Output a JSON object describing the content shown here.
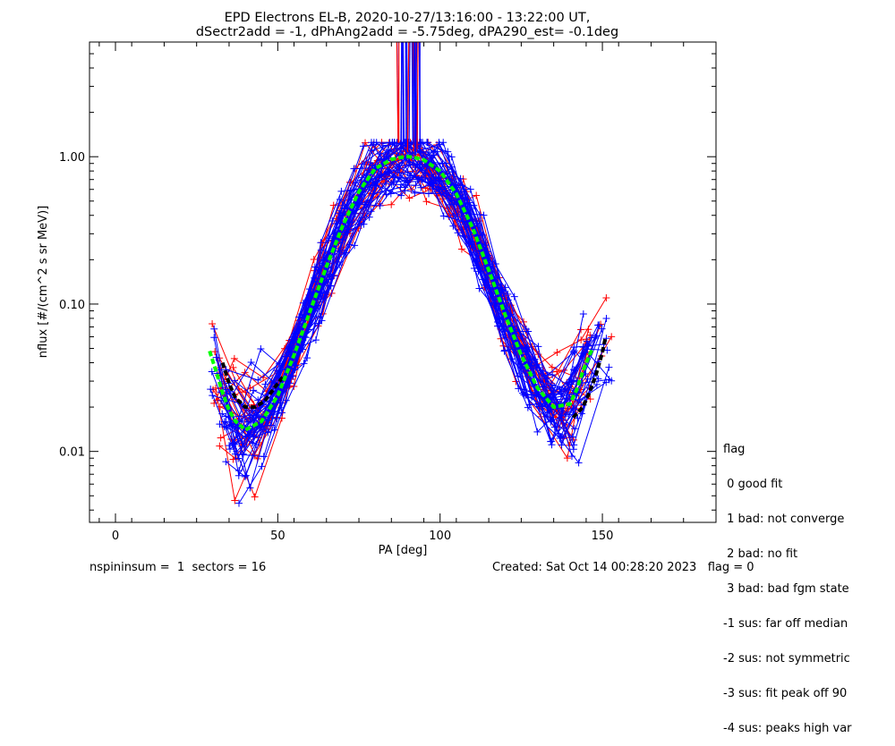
{
  "chart_data": {
    "type": "line",
    "title": "EPD Electrons EL-B, 2020-10-27/13:16:00 - 13:22:00 UT,",
    "subtitle": "dSectr2add = -1, dPhAng2add = -5.75deg, dPA290_est=  -0.1deg",
    "xlabel": "PA [deg]",
    "ylabel": "nflux [#/(cm^2 s sr MeV)]",
    "xlim": [
      -8,
      185
    ],
    "ylim": [
      0.0033,
      6.0
    ],
    "yscale": "log",
    "x_ticks": [
      0,
      50,
      100,
      150
    ],
    "y_ticks": [
      {
        "value": 0.01,
        "label": "0.01"
      },
      {
        "value": 0.1,
        "label": "0.10"
      },
      {
        "value": 1.0,
        "label": "1.00"
      }
    ],
    "grid": false,
    "series_styles": {
      "blue": "#0000ff",
      "red": "#ff0000",
      "green_fit": "#00ff00",
      "black_fit": "#000000"
    },
    "green_fit": {
      "x": [
        29,
        31,
        33,
        35,
        37,
        40,
        45,
        50,
        55,
        60,
        65,
        70,
        75,
        80,
        85,
        88,
        90,
        92,
        95,
        100,
        105,
        110,
        115,
        120,
        125,
        130,
        135,
        140,
        142,
        144,
        146,
        147
      ],
      "y": [
        0.048,
        0.035,
        0.025,
        0.019,
        0.016,
        0.014,
        0.016,
        0.024,
        0.045,
        0.09,
        0.18,
        0.34,
        0.58,
        0.83,
        0.96,
        0.99,
        1.0,
        0.99,
        0.95,
        0.8,
        0.56,
        0.33,
        0.17,
        0.085,
        0.045,
        0.027,
        0.02,
        0.021,
        0.026,
        0.035,
        0.045,
        0.05
      ]
    },
    "black_fit": {
      "x": [
        33,
        35,
        37,
        40,
        43,
        46,
        49,
        52,
        141,
        144,
        146,
        148,
        150,
        151
      ],
      "y": [
        0.04,
        0.029,
        0.023,
        0.02,
        0.02,
        0.022,
        0.027,
        0.033,
        0.017,
        0.02,
        0.025,
        0.033,
        0.047,
        0.06
      ]
    },
    "blue_curve_count": 38,
    "red_curve_count": 22
  },
  "flag_legend": [
    "flag",
    " 0 good fit",
    " 1 bad: not converge",
    " 2 bad: no fit",
    " 3 bad: bad fgm state",
    "-1 sus: far off median",
    "-2 sus: not symmetric",
    "-3 sus: fit peak off 90",
    "-4 sus: peaks high var"
  ],
  "footer": {
    "left": "nspininsum =  1  sectors = 16",
    "right": "Created: Sat Oct 14 00:28:20 2023   flag = 0"
  }
}
